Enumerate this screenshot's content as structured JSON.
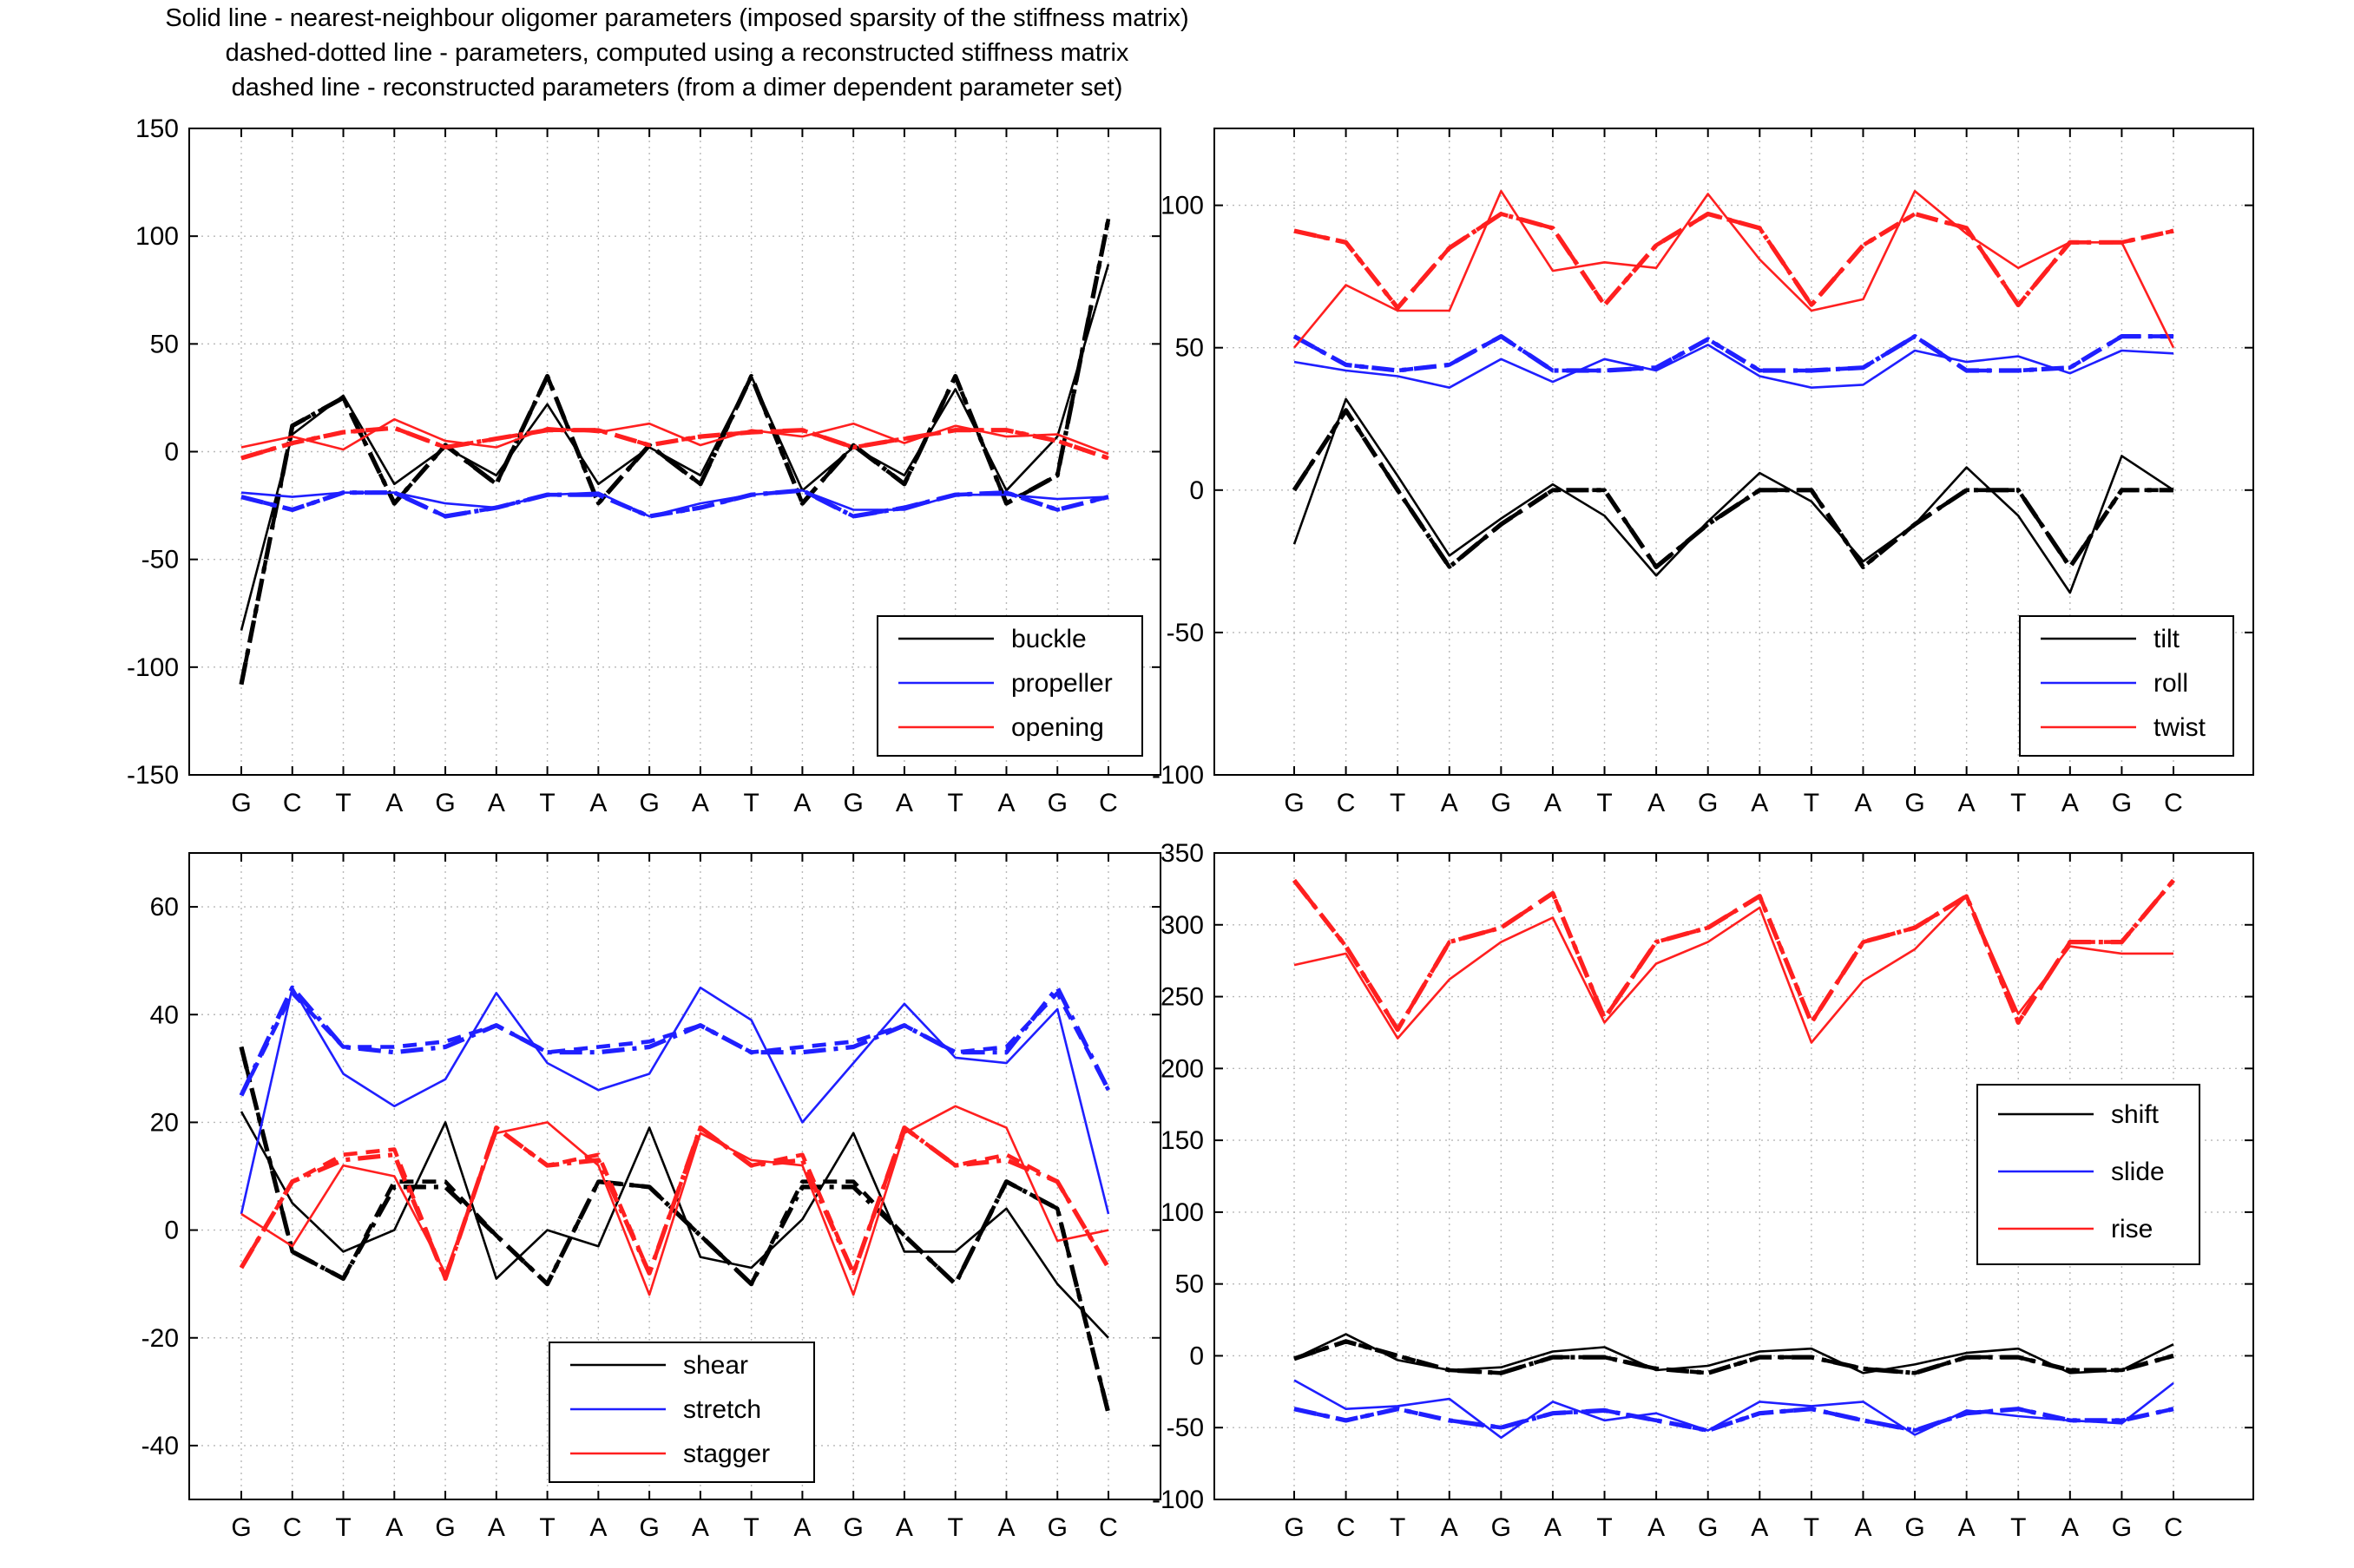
{
  "figure": {
    "title_lines": [
      "Solid line - nearest-neighbour oligomer parameters (imposed sparsity of the stiffness matrix)",
      "dashed-dotted line - parameters, computed using a reconstructed stiffness matrix",
      "dashed line - reconstructed parameters (from a dimer dependent parameter set)"
    ]
  },
  "chart_data": [
    {
      "type": "line",
      "categories": [
        "G",
        "C",
        "T",
        "A",
        "G",
        "A",
        "T",
        "A",
        "G",
        "A",
        "T",
        "A",
        "G",
        "A",
        "T",
        "A",
        "G",
        "C"
      ],
      "ylim": [
        -150,
        150
      ],
      "yticks": [
        -150,
        -100,
        -50,
        0,
        50,
        100,
        150
      ],
      "grid": true,
      "legend_position": "bottom-right",
      "series": [
        {
          "name": "buckle",
          "color": "#000000",
          "style": "solid",
          "values": [
            -83,
            8,
            26,
            -15,
            2,
            -11,
            22,
            -15,
            2,
            -11,
            35,
            -18,
            2,
            -11,
            29,
            -18,
            7,
            87
          ]
        },
        {
          "name": "buckle",
          "color": "#000000",
          "style": "dashdot",
          "legend": false,
          "values": [
            -108,
            12,
            25,
            -24,
            3,
            -15,
            35,
            -24,
            3,
            -15,
            35,
            -24,
            3,
            -15,
            35,
            -24,
            -11,
            108
          ]
        },
        {
          "name": "buckle",
          "color": "#000000",
          "style": "dashed",
          "legend": false,
          "values": [
            -108,
            12,
            25,
            -24,
            3,
            -15,
            35,
            -24,
            3,
            -15,
            35,
            -24,
            3,
            -15,
            35,
            -24,
            -11,
            108
          ]
        },
        {
          "name": "propeller",
          "color": "#1f1fff",
          "style": "solid",
          "values": [
            -19,
            -21,
            -19,
            -19,
            -24,
            -26,
            -20,
            -19,
            -30,
            -24,
            -20,
            -18,
            -27,
            -27,
            -20,
            -20,
            -22,
            -21
          ]
        },
        {
          "name": "propeller",
          "color": "#1f1fff",
          "style": "dashdot",
          "legend": false,
          "values": [
            -21,
            -27,
            -19,
            -19,
            -30,
            -26,
            -20,
            -20,
            -30,
            -26,
            -20,
            -18,
            -30,
            -26,
            -20,
            -19,
            -27,
            -21
          ]
        },
        {
          "name": "propeller",
          "color": "#1f1fff",
          "style": "dashed",
          "legend": false,
          "values": [
            -21,
            -27,
            -19,
            -19,
            -30,
            -26,
            -20,
            -20,
            -30,
            -26,
            -20,
            -18,
            -30,
            -26,
            -20,
            -19,
            -27,
            -21
          ]
        },
        {
          "name": "opening",
          "color": "#ff1f1f",
          "style": "solid",
          "values": [
            2,
            7,
            1,
            15,
            5,
            2,
            11,
            9,
            13,
            3,
            10,
            7,
            13,
            4,
            12,
            7,
            8,
            -1
          ]
        },
        {
          "name": "opening",
          "color": "#ff1f1f",
          "style": "dashdot",
          "legend": false,
          "values": [
            -3,
            4,
            9,
            11,
            2,
            6,
            10,
            10,
            3,
            7,
            9,
            10,
            2,
            6,
            10,
            10,
            5,
            -3
          ]
        },
        {
          "name": "opening",
          "color": "#ff1f1f",
          "style": "dashed",
          "legend": false,
          "values": [
            -3,
            4,
            9,
            11,
            2,
            6,
            10,
            10,
            3,
            7,
            9,
            10,
            2,
            6,
            10,
            10,
            5,
            -3
          ]
        }
      ]
    },
    {
      "type": "line",
      "categories": [
        "G",
        "C",
        "T",
        "A",
        "G",
        "A",
        "T",
        "A",
        "G",
        "A",
        "T",
        "A",
        "G",
        "A",
        "T",
        "A",
        "G",
        "C"
      ],
      "ylim": [
        -100,
        100
      ],
      "yticks": [
        -100,
        -50,
        0,
        50,
        100
      ],
      "ylim_display": [
        -100,
        127
      ],
      "grid": true,
      "legend_position": "bottom-right",
      "series": [
        {
          "name": "tilt",
          "color": "#000000",
          "style": "solid",
          "values": [
            -19,
            32,
            5,
            -23,
            -10,
            2,
            -9,
            -30,
            -11,
            6,
            -4,
            -25,
            -12,
            8,
            -9,
            -36,
            12,
            0
          ]
        },
        {
          "name": "tilt",
          "color": "#000000",
          "style": "dashdot",
          "legend": false,
          "values": [
            0,
            28,
            0,
            -27,
            -12,
            0,
            0,
            -27,
            -12,
            0,
            0,
            -27,
            -12,
            0,
            0,
            -27,
            0,
            0
          ]
        },
        {
          "name": "tilt",
          "color": "#000000",
          "style": "dashed",
          "legend": false,
          "values": [
            0,
            28,
            0,
            -27,
            -12,
            0,
            0,
            -27,
            -12,
            0,
            0,
            -27,
            -12,
            0,
            0,
            -27,
            0,
            0
          ]
        },
        {
          "name": "roll",
          "color": "#1f1fff",
          "style": "solid",
          "values": [
            45,
            42,
            40,
            36,
            46,
            38,
            46,
            42,
            51,
            40,
            36,
            37,
            49,
            45,
            47,
            41,
            49,
            48
          ]
        },
        {
          "name": "roll",
          "color": "#1f1fff",
          "style": "dashdot",
          "legend": false,
          "values": [
            54,
            44,
            42,
            44,
            54,
            42,
            42,
            43,
            53,
            42,
            42,
            43,
            54,
            42,
            42,
            43,
            54,
            54
          ]
        },
        {
          "name": "roll",
          "color": "#1f1fff",
          "style": "dashed",
          "legend": false,
          "values": [
            54,
            44,
            42,
            44,
            54,
            42,
            42,
            43,
            53,
            42,
            42,
            43,
            54,
            42,
            42,
            43,
            54,
            54
          ]
        },
        {
          "name": "twist",
          "color": "#ff1f1f",
          "style": "solid",
          "values": [
            50,
            72,
            63,
            63,
            105,
            77,
            80,
            78,
            104,
            81,
            63,
            67,
            105,
            90,
            78,
            87,
            87,
            50
          ]
        },
        {
          "name": "twist",
          "color": "#ff1f1f",
          "style": "dashdot",
          "legend": false,
          "values": [
            91,
            87,
            64,
            85,
            97,
            92,
            65,
            86,
            97,
            92,
            65,
            86,
            97,
            92,
            65,
            87,
            87,
            91
          ]
        },
        {
          "name": "twist",
          "color": "#ff1f1f",
          "style": "dashed",
          "legend": false,
          "values": [
            91,
            87,
            64,
            85,
            97,
            92,
            65,
            86,
            97,
            92,
            65,
            86,
            97,
            92,
            65,
            87,
            87,
            91
          ]
        }
      ]
    },
    {
      "type": "line",
      "categories": [
        "G",
        "C",
        "T",
        "A",
        "G",
        "A",
        "T",
        "A",
        "G",
        "A",
        "T",
        "A",
        "G",
        "A",
        "T",
        "A",
        "G",
        "C"
      ],
      "ylim": [
        -50,
        70
      ],
      "yticks": [
        -40,
        -20,
        0,
        20,
        40,
        60
      ],
      "grid": true,
      "legend_position": "bottom-center",
      "series": [
        {
          "name": "shear",
          "color": "#000000",
          "style": "solid",
          "values": [
            22,
            5,
            -4,
            0,
            20,
            -9,
            0,
            -3,
            19,
            -5,
            -7,
            2,
            18,
            -4,
            -4,
            4,
            -10,
            -20
          ]
        },
        {
          "name": "shear",
          "color": "#000000",
          "style": "dashdot",
          "legend": false,
          "values": [
            34,
            -4,
            -9,
            8,
            8,
            -1,
            -10,
            9,
            8,
            -1,
            -10,
            8,
            8,
            -1,
            -10,
            9,
            4,
            -34
          ]
        },
        {
          "name": "shear",
          "color": "#000000",
          "style": "dashed",
          "legend": false,
          "values": [
            34,
            -4,
            -9,
            9,
            9,
            -1,
            -10,
            9,
            8,
            -1,
            -10,
            9,
            9,
            -1,
            -10,
            9,
            4,
            -34
          ]
        },
        {
          "name": "stretch",
          "color": "#1f1fff",
          "style": "solid",
          "values": [
            3,
            45,
            29,
            23,
            28,
            44,
            31,
            26,
            29,
            45,
            39,
            20,
            31,
            42,
            32,
            31,
            41,
            3
          ]
        },
        {
          "name": "stretch",
          "color": "#1f1fff",
          "style": "dashdot",
          "legend": false,
          "values": [
            25,
            45,
            34,
            33,
            34,
            38,
            33,
            33,
            34,
            38,
            33,
            33,
            34,
            38,
            33,
            33,
            45,
            26
          ]
        },
        {
          "name": "stretch",
          "color": "#1f1fff",
          "style": "dashed",
          "legend": false,
          "values": [
            25,
            44,
            34,
            34,
            35,
            38,
            33,
            34,
            35,
            38,
            33,
            34,
            35,
            38,
            33,
            34,
            44,
            26
          ]
        },
        {
          "name": "stagger",
          "color": "#ff1f1f",
          "style": "solid",
          "values": [
            3,
            -3,
            12,
            10,
            -8,
            18,
            20,
            12,
            -12,
            18,
            13,
            12,
            -12,
            18,
            23,
            19,
            -2,
            0
          ]
        },
        {
          "name": "stagger",
          "color": "#ff1f1f",
          "style": "dashdot",
          "legend": false,
          "values": [
            -7,
            9,
            13,
            14,
            -9,
            19,
            12,
            13,
            -8,
            19,
            12,
            13,
            -8,
            19,
            12,
            13,
            9,
            -7
          ]
        },
        {
          "name": "stagger",
          "color": "#ff1f1f",
          "style": "dashed",
          "legend": false,
          "values": [
            -7,
            9,
            14,
            15,
            -9,
            19,
            12,
            14,
            -8,
            19,
            12,
            14,
            -8,
            19,
            12,
            14,
            9,
            -7
          ]
        }
      ]
    },
    {
      "type": "line",
      "categories": [
        "G",
        "C",
        "T",
        "A",
        "G",
        "A",
        "T",
        "A",
        "G",
        "A",
        "T",
        "A",
        "G",
        "A",
        "T",
        "A",
        "G",
        "C"
      ],
      "ylim": [
        -100,
        350
      ],
      "yticks": [
        -100,
        -50,
        0,
        50,
        100,
        150,
        200,
        250,
        300,
        350
      ],
      "grid": true,
      "legend_position": "right",
      "series": [
        {
          "name": "shift",
          "color": "#000000",
          "style": "solid",
          "values": [
            -2,
            15,
            -3,
            -10,
            -8,
            3,
            6,
            -10,
            -7,
            3,
            5,
            -12,
            -6,
            2,
            5,
            -12,
            -10,
            8
          ]
        },
        {
          "name": "shift",
          "color": "#000000",
          "style": "dashdot",
          "legend": false,
          "values": [
            -2,
            10,
            0,
            -10,
            -12,
            -1,
            -1,
            -9,
            -12,
            -1,
            -1,
            -9,
            -12,
            -1,
            -1,
            -10,
            -10,
            0
          ]
        },
        {
          "name": "shift",
          "color": "#000000",
          "style": "dashed",
          "legend": false,
          "values": [
            -2,
            10,
            0,
            -10,
            -12,
            -1,
            -1,
            -9,
            -12,
            -1,
            -1,
            -9,
            -12,
            -1,
            -1,
            -10,
            -10,
            0
          ]
        },
        {
          "name": "slide",
          "color": "#1f1fff",
          "style": "solid",
          "values": [
            -17,
            -37,
            -35,
            -30,
            -57,
            -32,
            -45,
            -40,
            -52,
            -32,
            -35,
            -32,
            -55,
            -38,
            -42,
            -45,
            -47,
            -19
          ]
        },
        {
          "name": "slide",
          "color": "#1f1fff",
          "style": "dashdot",
          "legend": false,
          "values": [
            -37,
            -45,
            -37,
            -45,
            -50,
            -40,
            -38,
            -45,
            -52,
            -40,
            -37,
            -45,
            -52,
            -40,
            -37,
            -45,
            -45,
            -37
          ]
        },
        {
          "name": "slide",
          "color": "#1f1fff",
          "style": "dashed",
          "legend": false,
          "values": [
            -37,
            -45,
            -37,
            -45,
            -50,
            -40,
            -38,
            -45,
            -52,
            -40,
            -37,
            -45,
            -52,
            -40,
            -37,
            -45,
            -45,
            -37
          ]
        },
        {
          "name": "rise",
          "color": "#ff1f1f",
          "style": "solid",
          "values": [
            272,
            280,
            221,
            262,
            288,
            305,
            232,
            273,
            288,
            312,
            218,
            261,
            283,
            320,
            238,
            285,
            280,
            280
          ]
        },
        {
          "name": "rise",
          "color": "#ff1f1f",
          "style": "dashdot",
          "legend": false,
          "values": [
            331,
            285,
            227,
            288,
            298,
            322,
            235,
            288,
            298,
            320,
            232,
            288,
            298,
            320,
            232,
            288,
            288,
            331
          ]
        },
        {
          "name": "rise",
          "color": "#ff1f1f",
          "style": "dashed",
          "legend": false,
          "values": [
            331,
            285,
            227,
            288,
            298,
            322,
            235,
            288,
            298,
            320,
            232,
            288,
            298,
            320,
            232,
            288,
            288,
            331
          ]
        }
      ]
    }
  ]
}
